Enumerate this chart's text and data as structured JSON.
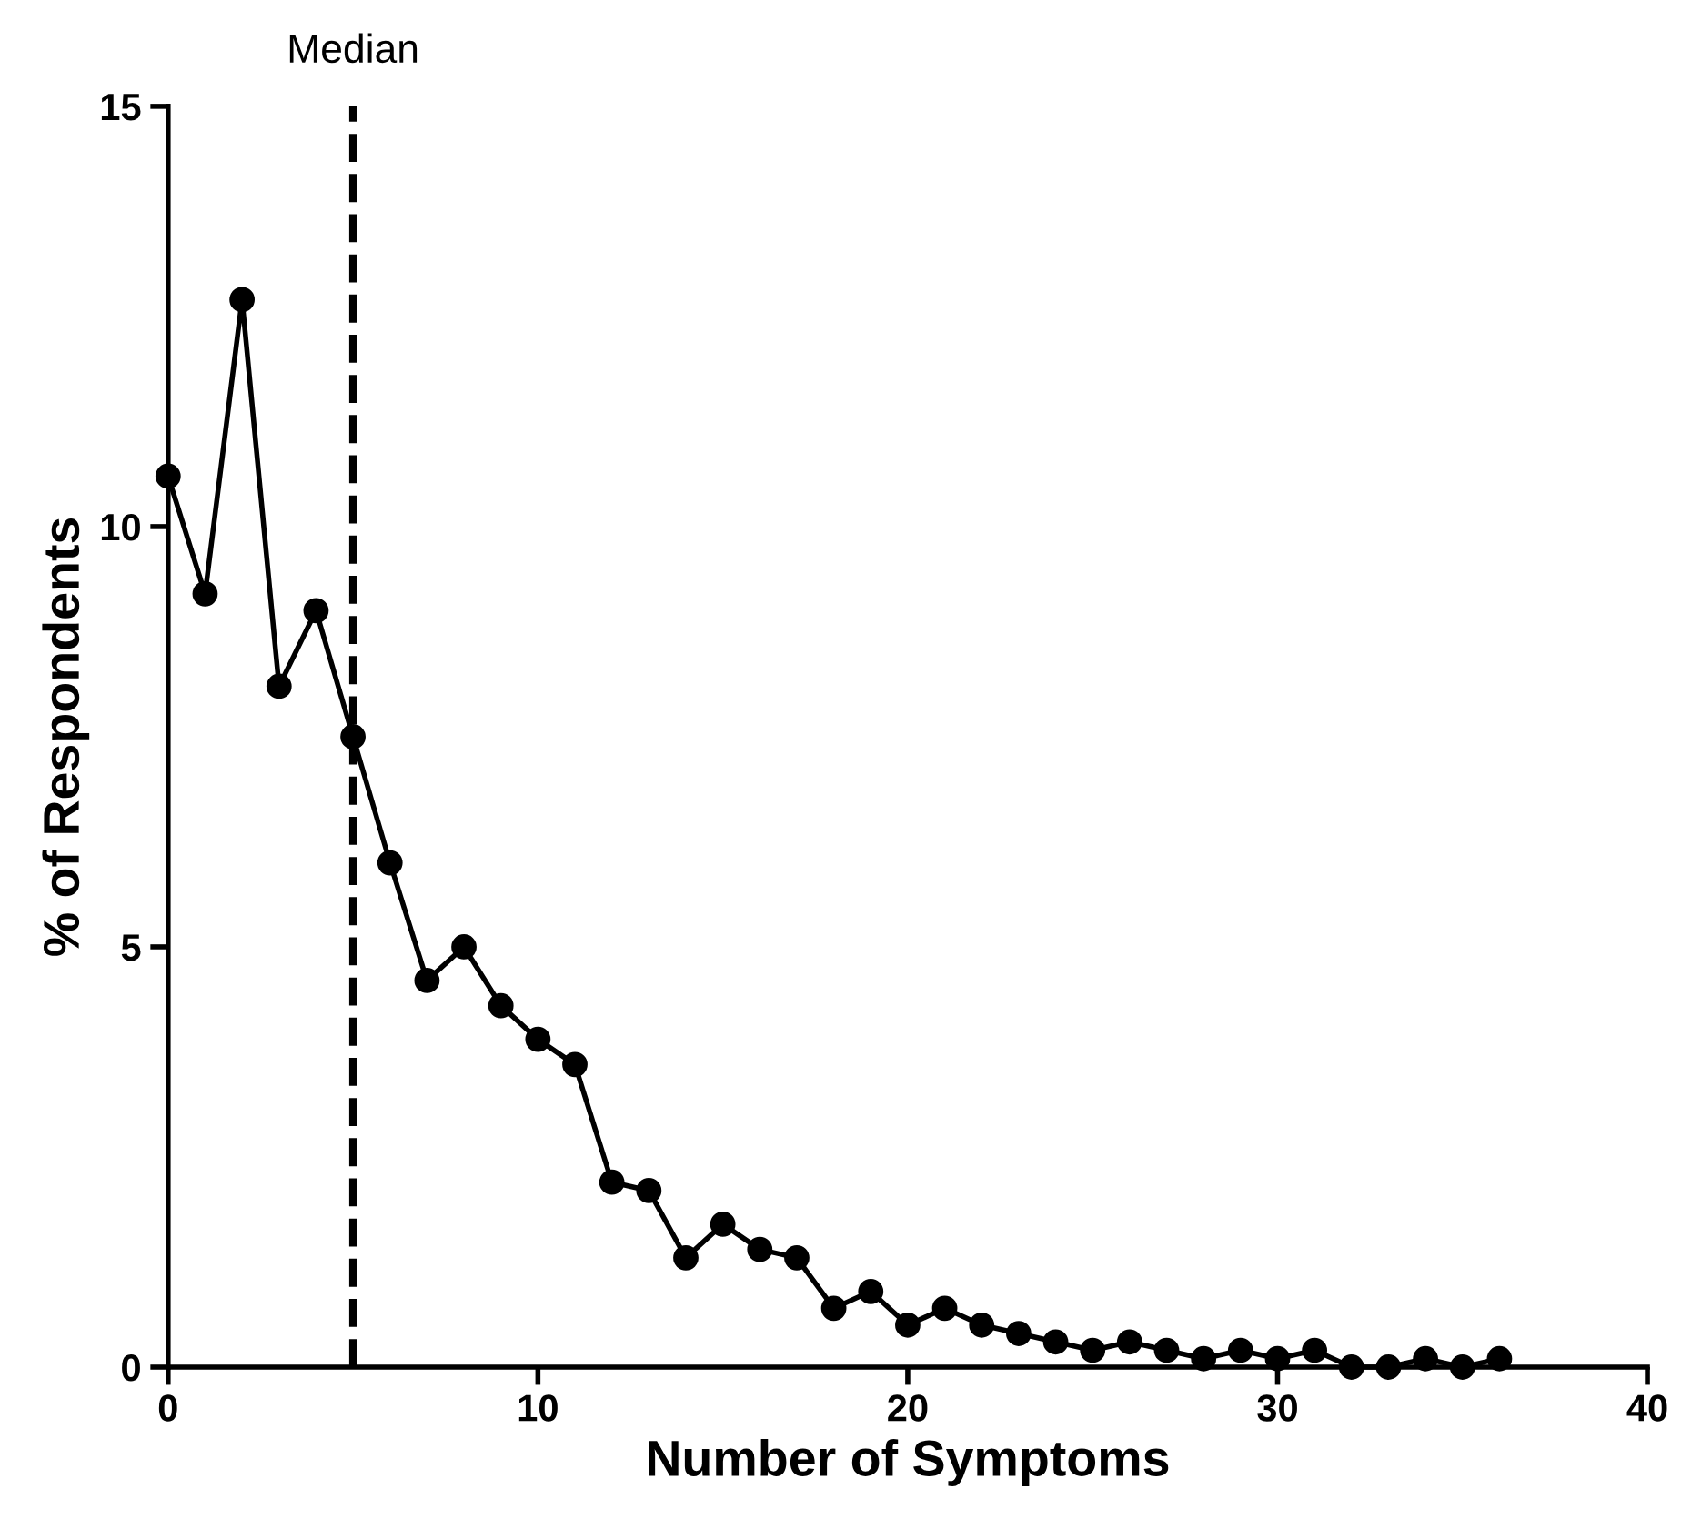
{
  "chart_data": {
    "type": "line",
    "xlabel": "Number of Symptoms",
    "ylabel": "% of Respondents",
    "x": [
      0,
      1,
      2,
      3,
      4,
      5,
      6,
      7,
      8,
      9,
      10,
      11,
      12,
      13,
      14,
      15,
      16,
      17,
      18,
      19,
      20,
      21,
      22,
      23,
      24,
      25,
      26,
      27,
      28,
      29,
      30,
      31,
      32,
      33,
      34,
      35,
      36
    ],
    "series": [
      {
        "color": "#000000",
        "values": [
          10.6,
          9.2,
          12.7,
          8.1,
          9.0,
          7.5,
          6.0,
          4.6,
          5.0,
          4.3,
          3.9,
          3.6,
          2.2,
          2.1,
          1.3,
          1.7,
          1.4,
          1.3,
          0.7,
          0.9,
          0.5,
          0.7,
          0.5,
          0.4,
          0.3,
          0.2,
          0.3,
          0.2,
          0.1,
          0.2,
          0.1,
          0.2,
          0,
          0,
          0.1,
          0,
          0.1
        ]
      }
    ],
    "xlim": [
      0,
      40
    ],
    "ylim": [
      0,
      15
    ],
    "xticks": [
      0,
      10,
      20,
      30,
      40
    ],
    "yticks": [
      0,
      5,
      10,
      15
    ],
    "marker": "circle",
    "line_style": "solid",
    "grid": false,
    "ref_lines": [
      {
        "axis": "x",
        "value": 5,
        "label": "Median",
        "color": "#000000",
        "line_style": "dashed"
      }
    ]
  }
}
